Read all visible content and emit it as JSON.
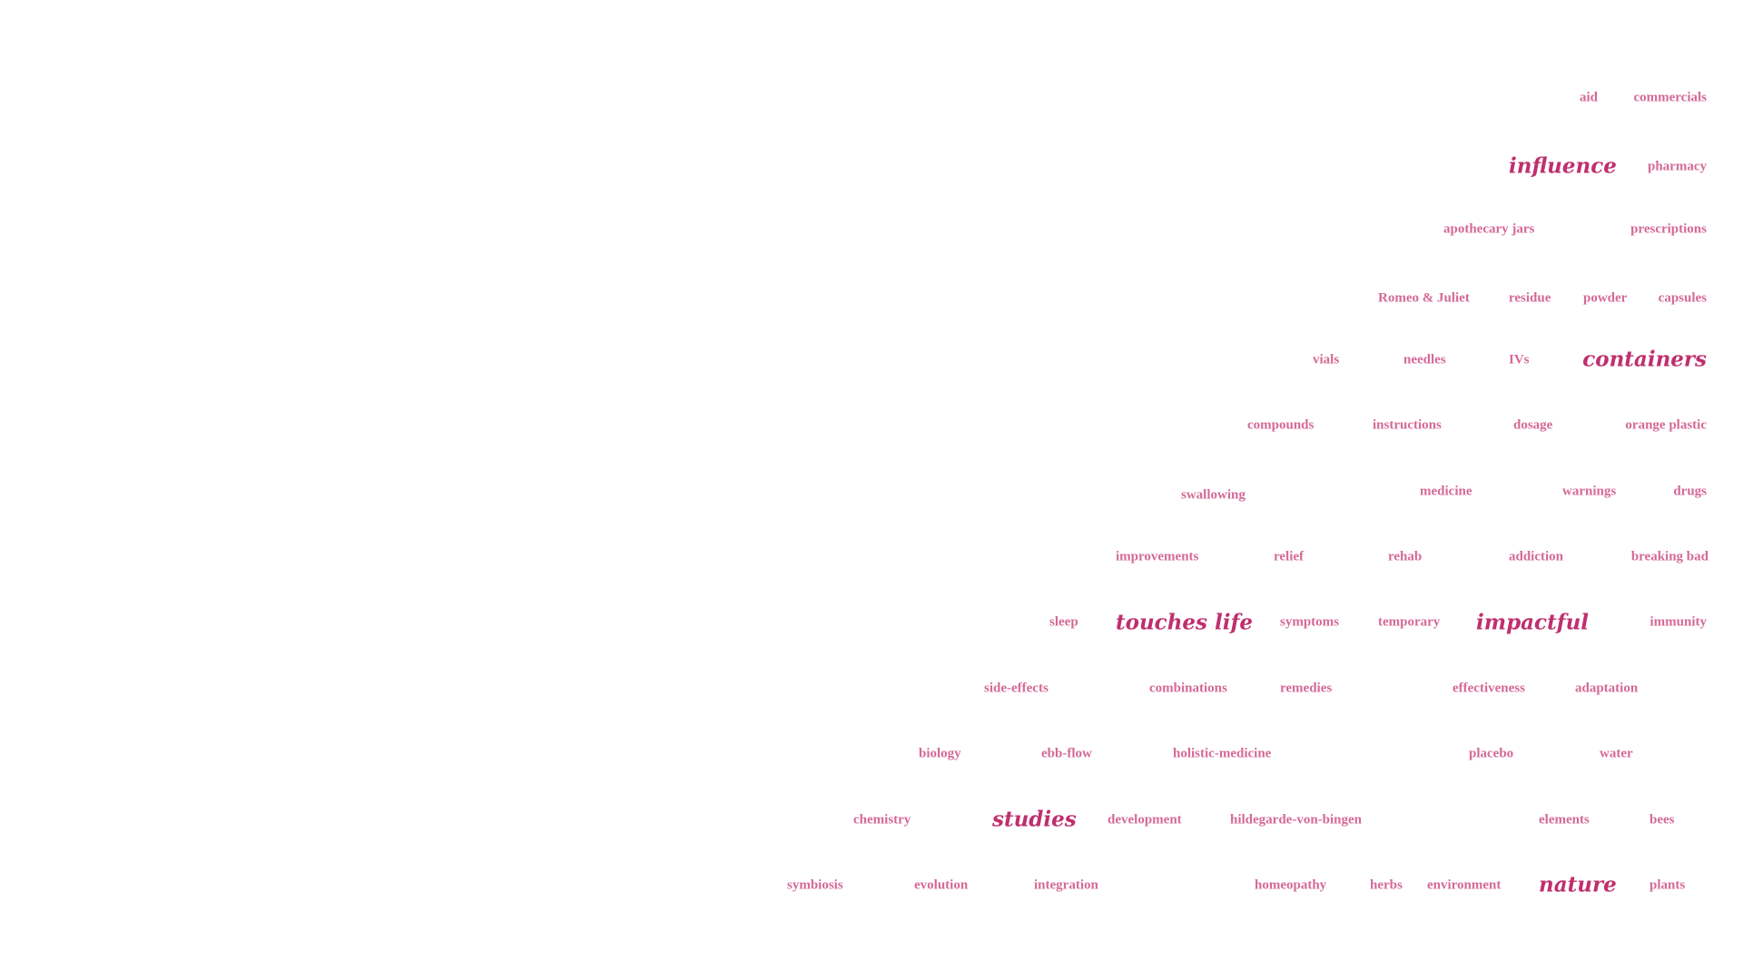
{
  "colors": {
    "background": "#ffffff",
    "keyword": "#bf2f6e",
    "word": "#d46a96"
  },
  "words": [
    {
      "id": "aid",
      "text": "aid",
      "size": "small"
    },
    {
      "id": "commercials",
      "text": "commercials",
      "size": "small"
    },
    {
      "id": "influence",
      "text": "influence",
      "size": "big"
    },
    {
      "id": "pharmacy",
      "text": "pharmacy",
      "size": "small"
    },
    {
      "id": "apothecary-jars",
      "text": "apothecary jars",
      "size": "small"
    },
    {
      "id": "prescriptions",
      "text": "prescriptions",
      "size": "small"
    },
    {
      "id": "romeo-juliet",
      "text": "Romeo & Juliet",
      "size": "small"
    },
    {
      "id": "residue",
      "text": "residue",
      "size": "small"
    },
    {
      "id": "powder",
      "text": "powder",
      "size": "small"
    },
    {
      "id": "capsules",
      "text": "capsules",
      "size": "small"
    },
    {
      "id": "vials",
      "text": "vials",
      "size": "small"
    },
    {
      "id": "needles",
      "text": "needles",
      "size": "small"
    },
    {
      "id": "ivs",
      "text": "IVs",
      "size": "small"
    },
    {
      "id": "containers",
      "text": "containers",
      "size": "big"
    },
    {
      "id": "compounds",
      "text": "compounds",
      "size": "small"
    },
    {
      "id": "instructions",
      "text": "instructions",
      "size": "small"
    },
    {
      "id": "dosage",
      "text": "dosage",
      "size": "small"
    },
    {
      "id": "orange-plastic",
      "text": "orange plastic",
      "size": "small"
    },
    {
      "id": "swallowing",
      "text": "swallowing",
      "size": "small"
    },
    {
      "id": "medicine",
      "text": "medicine",
      "size": "small"
    },
    {
      "id": "warnings",
      "text": "warnings",
      "size": "small"
    },
    {
      "id": "drugs",
      "text": "drugs",
      "size": "small"
    },
    {
      "id": "improvements",
      "text": "improvements",
      "size": "small"
    },
    {
      "id": "relief",
      "text": "relief",
      "size": "small"
    },
    {
      "id": "rehab",
      "text": "rehab",
      "size": "small"
    },
    {
      "id": "addiction",
      "text": "addiction",
      "size": "small"
    },
    {
      "id": "breaking-bad",
      "text": "breaking bad",
      "size": "small"
    },
    {
      "id": "sleep",
      "text": "sleep",
      "size": "small"
    },
    {
      "id": "touches-life",
      "text": "touches life",
      "size": "big"
    },
    {
      "id": "symptoms",
      "text": "symptoms",
      "size": "small"
    },
    {
      "id": "temporary",
      "text": "temporary",
      "size": "small"
    },
    {
      "id": "impactful",
      "text": "impactful",
      "size": "big"
    },
    {
      "id": "immunity",
      "text": "immunity",
      "size": "small"
    },
    {
      "id": "side-effects",
      "text": "side-effects",
      "size": "small"
    },
    {
      "id": "combinations",
      "text": "combinations",
      "size": "small"
    },
    {
      "id": "remedies",
      "text": "remedies",
      "size": "small"
    },
    {
      "id": "effectiveness",
      "text": "effectiveness",
      "size": "small"
    },
    {
      "id": "adaptation",
      "text": "adaptation",
      "size": "small"
    },
    {
      "id": "biology",
      "text": "biology",
      "size": "small"
    },
    {
      "id": "ebb-flow",
      "text": "ebb-flow",
      "size": "small"
    },
    {
      "id": "holistic-medicine",
      "text": "holistic-medicine",
      "size": "small"
    },
    {
      "id": "placebo",
      "text": "placebo",
      "size": "small"
    },
    {
      "id": "water",
      "text": "water",
      "size": "small"
    },
    {
      "id": "chemistry",
      "text": "chemistry",
      "size": "small"
    },
    {
      "id": "studies",
      "text": "studies",
      "size": "big"
    },
    {
      "id": "development",
      "text": "development",
      "size": "small"
    },
    {
      "id": "hildegarde-von-bingen",
      "text": "hildegarde-von-bingen",
      "size": "small"
    },
    {
      "id": "elements",
      "text": "elements",
      "size": "small"
    },
    {
      "id": "bees",
      "text": "bees",
      "size": "small"
    },
    {
      "id": "symbiosis",
      "text": "symbiosis",
      "size": "small"
    },
    {
      "id": "evolution",
      "text": "evolution",
      "size": "small"
    },
    {
      "id": "integration",
      "text": "integration",
      "size": "small"
    },
    {
      "id": "homeopathy",
      "text": "homeopathy",
      "size": "small"
    },
    {
      "id": "herbs",
      "text": "herbs",
      "size": "small"
    },
    {
      "id": "environment",
      "text": "environment",
      "size": "small"
    },
    {
      "id": "nature",
      "text": "nature",
      "size": "big"
    },
    {
      "id": "plants",
      "text": "plants",
      "size": "small"
    }
  ]
}
